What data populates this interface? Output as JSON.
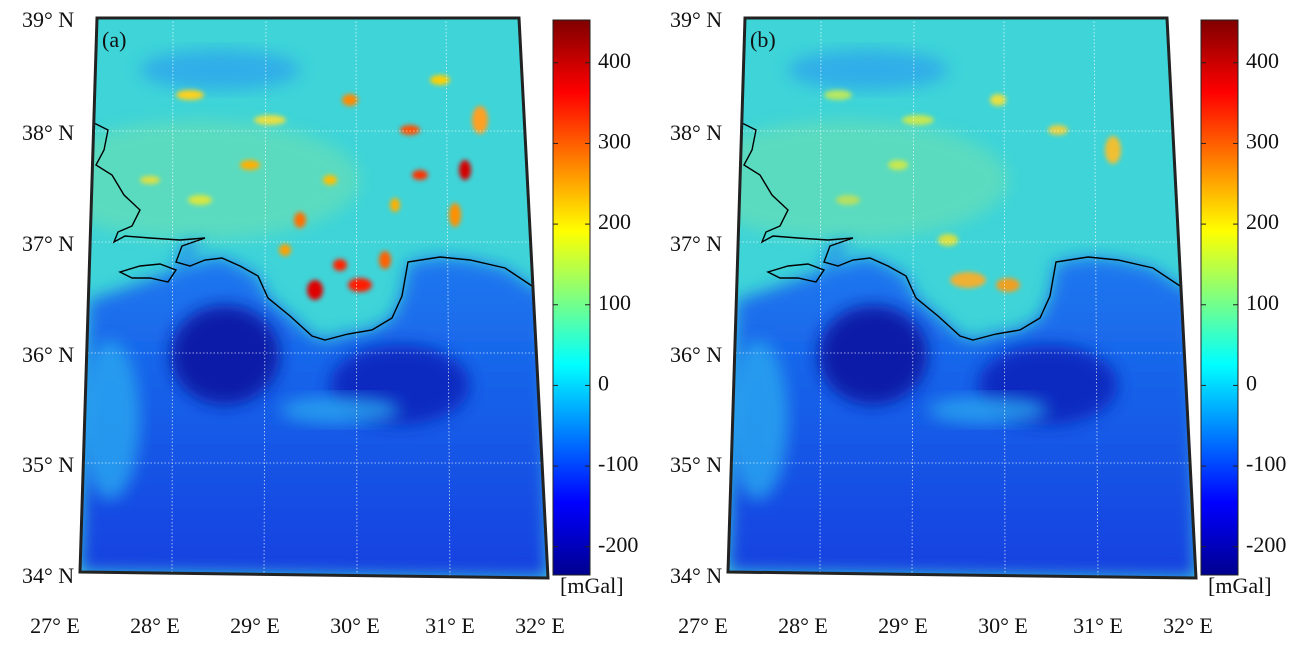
{
  "panels": [
    {
      "label": "(a)",
      "lat_labels": [
        "39° N",
        "38° N",
        "37° N",
        "36° N",
        "35° N",
        "34° N"
      ],
      "lon_labels": [
        "27° E",
        "28° E",
        "29° E",
        "30° E",
        "31° E",
        "32° E"
      ],
      "colorbar": {
        "range": [
          -235,
          453
        ],
        "ticks": [
          400,
          300,
          200,
          100,
          0,
          -100,
          -200
        ],
        "unit": "[mGal]"
      }
    },
    {
      "label": "(b)",
      "lat_labels": [
        "39° N",
        "38° N",
        "37° N",
        "36° N",
        "35° N",
        "34° N"
      ],
      "lon_labels": [
        "27° E",
        "28° E",
        "29° E",
        "30° E",
        "31° E",
        "32° E"
      ],
      "colorbar": {
        "range": [
          -235,
          453
        ],
        "ticks": [
          400,
          300,
          200,
          100,
          0,
          -100,
          -200
        ],
        "unit": "[mGal]"
      }
    }
  ]
}
